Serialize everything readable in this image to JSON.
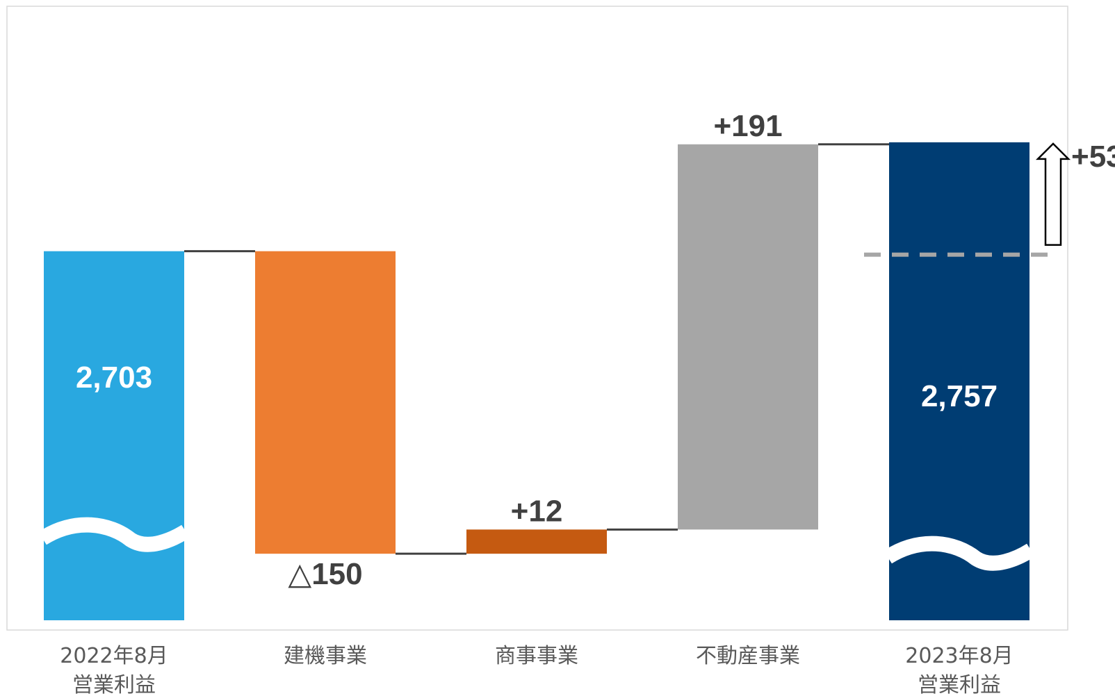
{
  "chart_data": {
    "type": "bar",
    "subtype": "waterfall",
    "categories": [
      [
        "2022年8月",
        "営業利益"
      ],
      [
        "建機事業"
      ],
      [
        "商事事業"
      ],
      [
        "不動産事業"
      ],
      [
        "2023年8月",
        "営業利益"
      ]
    ],
    "values": [
      2703,
      -150,
      12,
      191,
      2757
    ],
    "kinds": [
      "total",
      "delta",
      "delta",
      "delta",
      "total"
    ],
    "value_labels": [
      "2,703",
      "△150",
      "+12",
      "+191",
      "2,757"
    ],
    "colors": [
      "#29a8e0",
      "#ed7d31",
      "#c55a11",
      "#a6a6a6",
      "#003d73"
    ],
    "axis_break": true,
    "change_annotation": {
      "label": "+53",
      "direction": "up"
    },
    "grid": false,
    "legend": "none"
  }
}
